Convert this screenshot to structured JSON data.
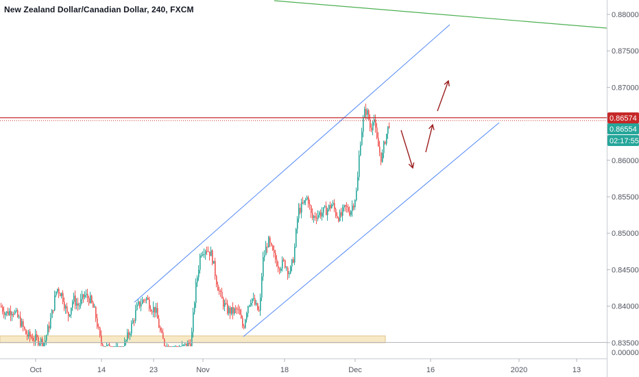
{
  "title": "New Zealand Dollar/Canadian Dollar, 240, FXCM",
  "colors": {
    "up": "#26a69a",
    "down": "#ef5350",
    "channel": "#4f86f7",
    "trend": "#4caf50",
    "resistance": "#c62828",
    "arrow": "#9b1c1c",
    "zone_fill": "#f7e9c6",
    "zone_stroke": "#e0c48a"
  },
  "price_badges": {
    "resistance_label": "0.86574",
    "price_label": "0.86554",
    "countdown_label": "02:17:55"
  },
  "y_ticks": [
    "0.88000",
    "0.87500",
    "0.87000",
    "0.86500",
    "0.86000",
    "0.85500",
    "0.85000",
    "0.84500",
    "0.84000",
    "0.83500"
  ],
  "lower_pane_tick": "0.00000",
  "x_ticks": [
    "Oct",
    "14",
    "23",
    "Nov",
    "18",
    "Dec",
    "16",
    "2020",
    "13"
  ],
  "chart_data": {
    "type": "candlestick",
    "symbol": "New Zealand Dollar/Canadian Dollar",
    "interval": "240",
    "source": "FXCM",
    "ylim": [
      0.8345,
      0.8835
    ],
    "path_anchors": [
      [
        0,
        0.84
      ],
      [
        8,
        0.839
      ],
      [
        18,
        0.8395
      ],
      [
        28,
        0.838
      ],
      [
        38,
        0.836
      ],
      [
        50,
        0.8355
      ],
      [
        64,
        0.835
      ],
      [
        74,
        0.8385
      ],
      [
        82,
        0.8425
      ],
      [
        90,
        0.8415
      ],
      [
        98,
        0.8385
      ],
      [
        106,
        0.841
      ],
      [
        114,
        0.84
      ],
      [
        122,
        0.8415
      ],
      [
        130,
        0.841
      ],
      [
        138,
        0.839
      ],
      [
        146,
        0.835
      ],
      [
        152,
        0.8345
      ],
      [
        160,
        0.834
      ],
      [
        176,
        0.8335
      ],
      [
        190,
        0.837
      ],
      [
        200,
        0.84
      ],
      [
        212,
        0.8412
      ],
      [
        220,
        0.8398
      ],
      [
        226,
        0.8395
      ],
      [
        234,
        0.836
      ],
      [
        240,
        0.8345
      ],
      [
        260,
        0.834
      ],
      [
        278,
        0.835
      ],
      [
        284,
        0.842
      ],
      [
        292,
        0.8475
      ],
      [
        300,
        0.848
      ],
      [
        308,
        0.847
      ],
      [
        316,
        0.843
      ],
      [
        322,
        0.841
      ],
      [
        330,
        0.8395
      ],
      [
        338,
        0.8392
      ],
      [
        346,
        0.8395
      ],
      [
        354,
        0.837
      ],
      [
        360,
        0.84
      ],
      [
        366,
        0.8412
      ],
      [
        372,
        0.84
      ],
      [
        378,
        0.839
      ],
      [
        382,
        0.846
      ],
      [
        390,
        0.849
      ],
      [
        398,
        0.847
      ],
      [
        406,
        0.8455
      ],
      [
        414,
        0.846
      ],
      [
        422,
        0.8445
      ],
      [
        428,
        0.847
      ],
      [
        434,
        0.853
      ],
      [
        442,
        0.854
      ],
      [
        448,
        0.855
      ],
      [
        454,
        0.852
      ],
      [
        460,
        0.8525
      ],
      [
        468,
        0.8528
      ],
      [
        476,
        0.8532
      ],
      [
        484,
        0.854
      ],
      [
        490,
        0.8525
      ],
      [
        496,
        0.8522
      ],
      [
        502,
        0.8535
      ],
      [
        510,
        0.853
      ],
      [
        516,
        0.8545
      ],
      [
        520,
        0.856
      ],
      [
        524,
        0.862
      ],
      [
        528,
        0.865
      ],
      [
        532,
        0.867
      ],
      [
        536,
        0.8662
      ],
      [
        540,
        0.864
      ],
      [
        544,
        0.8665
      ],
      [
        548,
        0.863
      ],
      [
        552,
        0.8615
      ],
      [
        556,
        0.86
      ],
      [
        560,
        0.8625
      ],
      [
        564,
        0.864
      ],
      [
        568,
        0.8655
      ]
    ],
    "resistance_price": 0.86574,
    "last_price": 0.86554
  }
}
